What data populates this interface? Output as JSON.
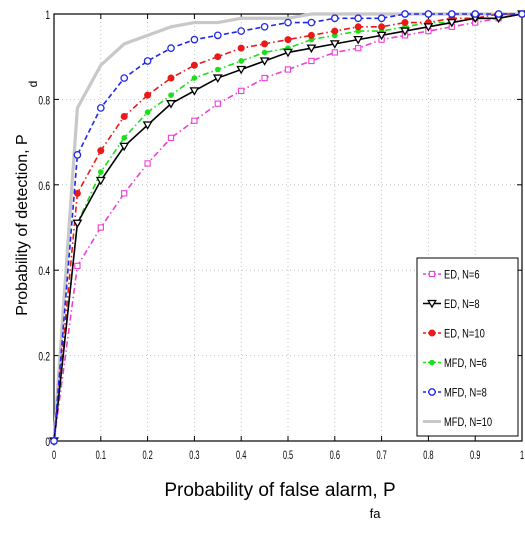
{
  "chart_data": {
    "type": "line",
    "title": "",
    "xlabel": "Probability of false alarm, P",
    "xlabel_sub": "fa",
    "ylabel": "Probability of detection, P",
    "ylabel_sub": "d",
    "xlim": [
      0,
      1
    ],
    "ylim": [
      0,
      1
    ],
    "xticks": [
      "0",
      "0.1",
      "0.2",
      "0.3",
      "0.4",
      "0.5",
      "0.6",
      "0.7",
      "0.8",
      "0.9",
      "1"
    ],
    "yticks": [
      "0",
      "0.2",
      "0.4",
      "0.6",
      "0.8",
      "1"
    ],
    "grid": true,
    "legend_position": "bottom-right",
    "x": [
      0,
      0.05,
      0.1,
      0.15,
      0.2,
      0.25,
      0.3,
      0.35,
      0.4,
      0.45,
      0.5,
      0.55,
      0.6,
      0.65,
      0.7,
      0.75,
      0.8,
      0.85,
      0.9,
      0.95,
      1.0
    ],
    "series": [
      {
        "name": "ED, N=6",
        "color": "#ee3fd4",
        "dash": "dash-dot",
        "marker": "square",
        "values": [
          0,
          0.41,
          0.5,
          0.58,
          0.65,
          0.71,
          0.75,
          0.79,
          0.82,
          0.85,
          0.87,
          0.89,
          0.91,
          0.92,
          0.94,
          0.95,
          0.96,
          0.97,
          0.98,
          0.99,
          1.0
        ]
      },
      {
        "name": "ED, N=8",
        "color": "#000000",
        "dash": "solid",
        "marker": "triangle-down",
        "values": [
          0,
          0.51,
          0.61,
          0.69,
          0.74,
          0.79,
          0.82,
          0.85,
          0.87,
          0.89,
          0.91,
          0.92,
          0.93,
          0.94,
          0.95,
          0.96,
          0.97,
          0.98,
          0.99,
          0.99,
          1.0
        ]
      },
      {
        "name": "ED, N=10",
        "color": "#e81a1a",
        "dash": "dash-dot",
        "marker": "star",
        "values": [
          0,
          0.58,
          0.68,
          0.76,
          0.81,
          0.85,
          0.88,
          0.9,
          0.92,
          0.93,
          0.94,
          0.95,
          0.96,
          0.97,
          0.97,
          0.98,
          0.98,
          0.99,
          0.99,
          1.0,
          1.0
        ]
      },
      {
        "name": "MFD, N=6",
        "color": "#19e019",
        "dash": "dash-dot",
        "marker": "dot",
        "values": [
          0,
          0.51,
          0.63,
          0.71,
          0.77,
          0.81,
          0.85,
          0.87,
          0.89,
          0.91,
          0.92,
          0.94,
          0.95,
          0.96,
          0.96,
          0.97,
          0.98,
          0.98,
          0.99,
          0.99,
          1.0
        ]
      },
      {
        "name": "MFD, N=8",
        "color": "#1f28e6",
        "dash": "dashed",
        "marker": "circle",
        "values": [
          0,
          0.67,
          0.78,
          0.85,
          0.89,
          0.92,
          0.94,
          0.95,
          0.96,
          0.97,
          0.98,
          0.98,
          0.99,
          0.99,
          0.99,
          1.0,
          1.0,
          1.0,
          1.0,
          1.0,
          1.0
        ]
      },
      {
        "name": "MFD, N=10",
        "color": "#c8c8c8",
        "dash": "solid",
        "marker": "none",
        "values": [
          0,
          0.78,
          0.88,
          0.93,
          0.95,
          0.97,
          0.98,
          0.98,
          0.99,
          0.99,
          0.99,
          1.0,
          1.0,
          1.0,
          1.0,
          1.0,
          1.0,
          1.0,
          1.0,
          1.0,
          1.0
        ]
      }
    ]
  }
}
